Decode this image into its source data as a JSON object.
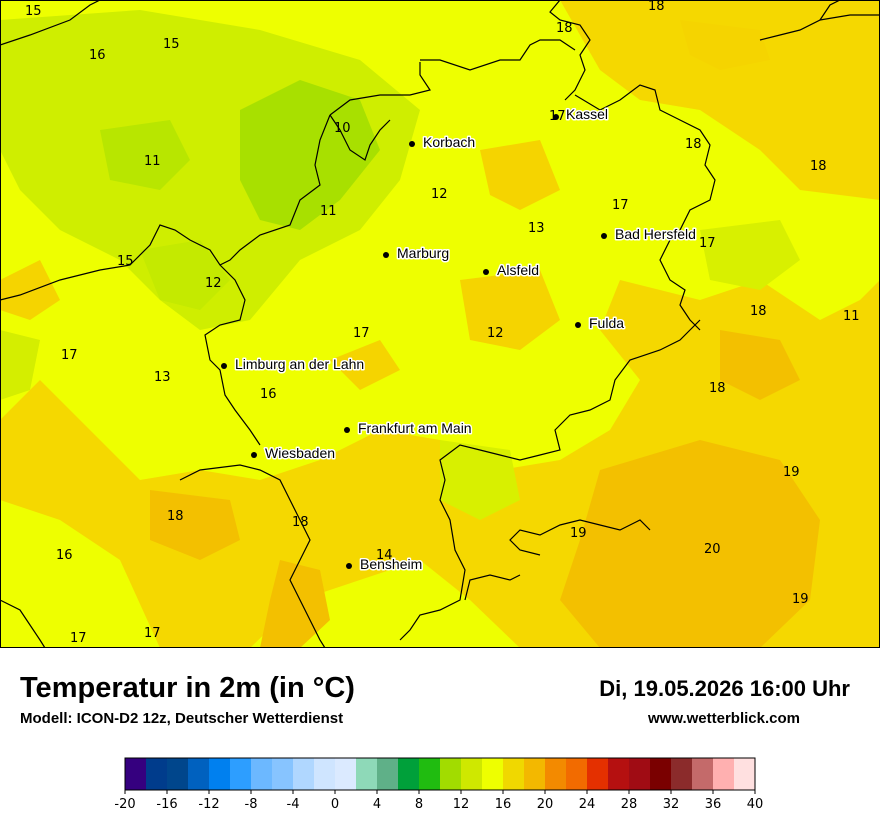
{
  "map": {
    "cities": [
      {
        "name": "Kassel"
      },
      {
        "name": "Korbach"
      },
      {
        "name": "Bad Hersfeld"
      },
      {
        "name": "Marburg"
      },
      {
        "name": "Alsfeld"
      },
      {
        "name": "Fulda"
      },
      {
        "name": "Limburg an der Lahn"
      },
      {
        "name": "Frankfurt am Main"
      },
      {
        "name": "Wiesbaden"
      },
      {
        "name": "Bensheim"
      }
    ],
    "temperature_labels": [
      "15",
      "15",
      "16",
      "18",
      "18",
      "17",
      "10",
      "18",
      "11",
      "18",
      "12",
      "17",
      "11",
      "13",
      "17",
      "15",
      "12",
      "18",
      "11",
      "17",
      "12",
      "13",
      "16",
      "18",
      "17",
      "19",
      "18",
      "18",
      "16",
      "14",
      "19",
      "20",
      "17",
      "17",
      "19"
    ],
    "colors": {
      "yellow": "#eeff00",
      "gold": "#f5d400",
      "orange": "#f5c000",
      "lightgreen": "#cfee00",
      "green": "#a8e000",
      "border": "#000000"
    }
  },
  "footer": {
    "title": "Temperatur in 2m (in °C)",
    "subtitle": "Modell: ICON-D2 12z, Deutscher Wetterdienst",
    "datetime": "Di, 19.05.2026 16:00 Uhr",
    "website": "www.wetterblick.com"
  },
  "legend": {
    "ticks": [
      "-20",
      "-16",
      "-12",
      "-8",
      "-4",
      "0",
      "4",
      "8",
      "12",
      "16",
      "20",
      "24",
      "28",
      "32",
      "36",
      "40"
    ],
    "colors": [
      "#35007f",
      "#003c8c",
      "#00468c",
      "#0061bf",
      "#0080ef",
      "#2d9eff",
      "#6cb8ff",
      "#87c4ff",
      "#b0d7ff",
      "#cfe5ff",
      "#dbeaff",
      "#8ed9b8",
      "#5fb088",
      "#00a03a",
      "#20bc10",
      "#a2dc00",
      "#cfe800",
      "#eeff00",
      "#f0d800",
      "#f3b800",
      "#f38a00",
      "#f26b00",
      "#e43000",
      "#b51010",
      "#a00c14",
      "#7a0000",
      "#8b2b2b",
      "#c46a6a",
      "#ffb0b0",
      "#ffe0e0"
    ]
  }
}
